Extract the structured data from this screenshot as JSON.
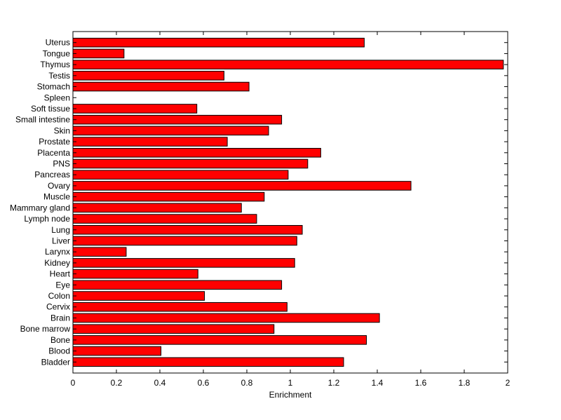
{
  "chart_data": {
    "type": "bar",
    "orientation": "horizontal",
    "title": "",
    "xlabel": "Enrichment",
    "ylabel": "",
    "xlim": [
      0,
      2
    ],
    "xticks": [
      "0",
      "0.2",
      "0.4",
      "0.6",
      "0.8",
      "1",
      "1.2",
      "1.4",
      "1.6",
      "1.8",
      "2"
    ],
    "grid": false,
    "bar_color": "#ff0000",
    "categories": [
      "Uterus",
      "Tongue",
      "Thymus",
      "Testis",
      "Stomach",
      "Spleen",
      "Soft tissue",
      "Small intestine",
      "Skin",
      "Prostate",
      "Placenta",
      "PNS",
      "Pancreas",
      "Ovary",
      "Muscle",
      "Mammary gland",
      "Lymph node",
      "Lung",
      "Liver",
      "Larynx",
      "Kidney",
      "Heart",
      "Eye",
      "Colon",
      "Cervix",
      "Brain",
      "Bone marrow",
      "Bone",
      "Blood",
      "Bladder"
    ],
    "values": [
      1.34,
      0.235,
      1.98,
      0.695,
      0.81,
      0.0,
      0.57,
      0.96,
      0.9,
      0.71,
      1.14,
      1.08,
      0.99,
      1.555,
      0.88,
      0.775,
      0.845,
      1.055,
      1.03,
      0.245,
      1.02,
      0.575,
      0.96,
      0.605,
      0.985,
      1.41,
      0.925,
      1.35,
      0.405,
      1.245
    ]
  }
}
